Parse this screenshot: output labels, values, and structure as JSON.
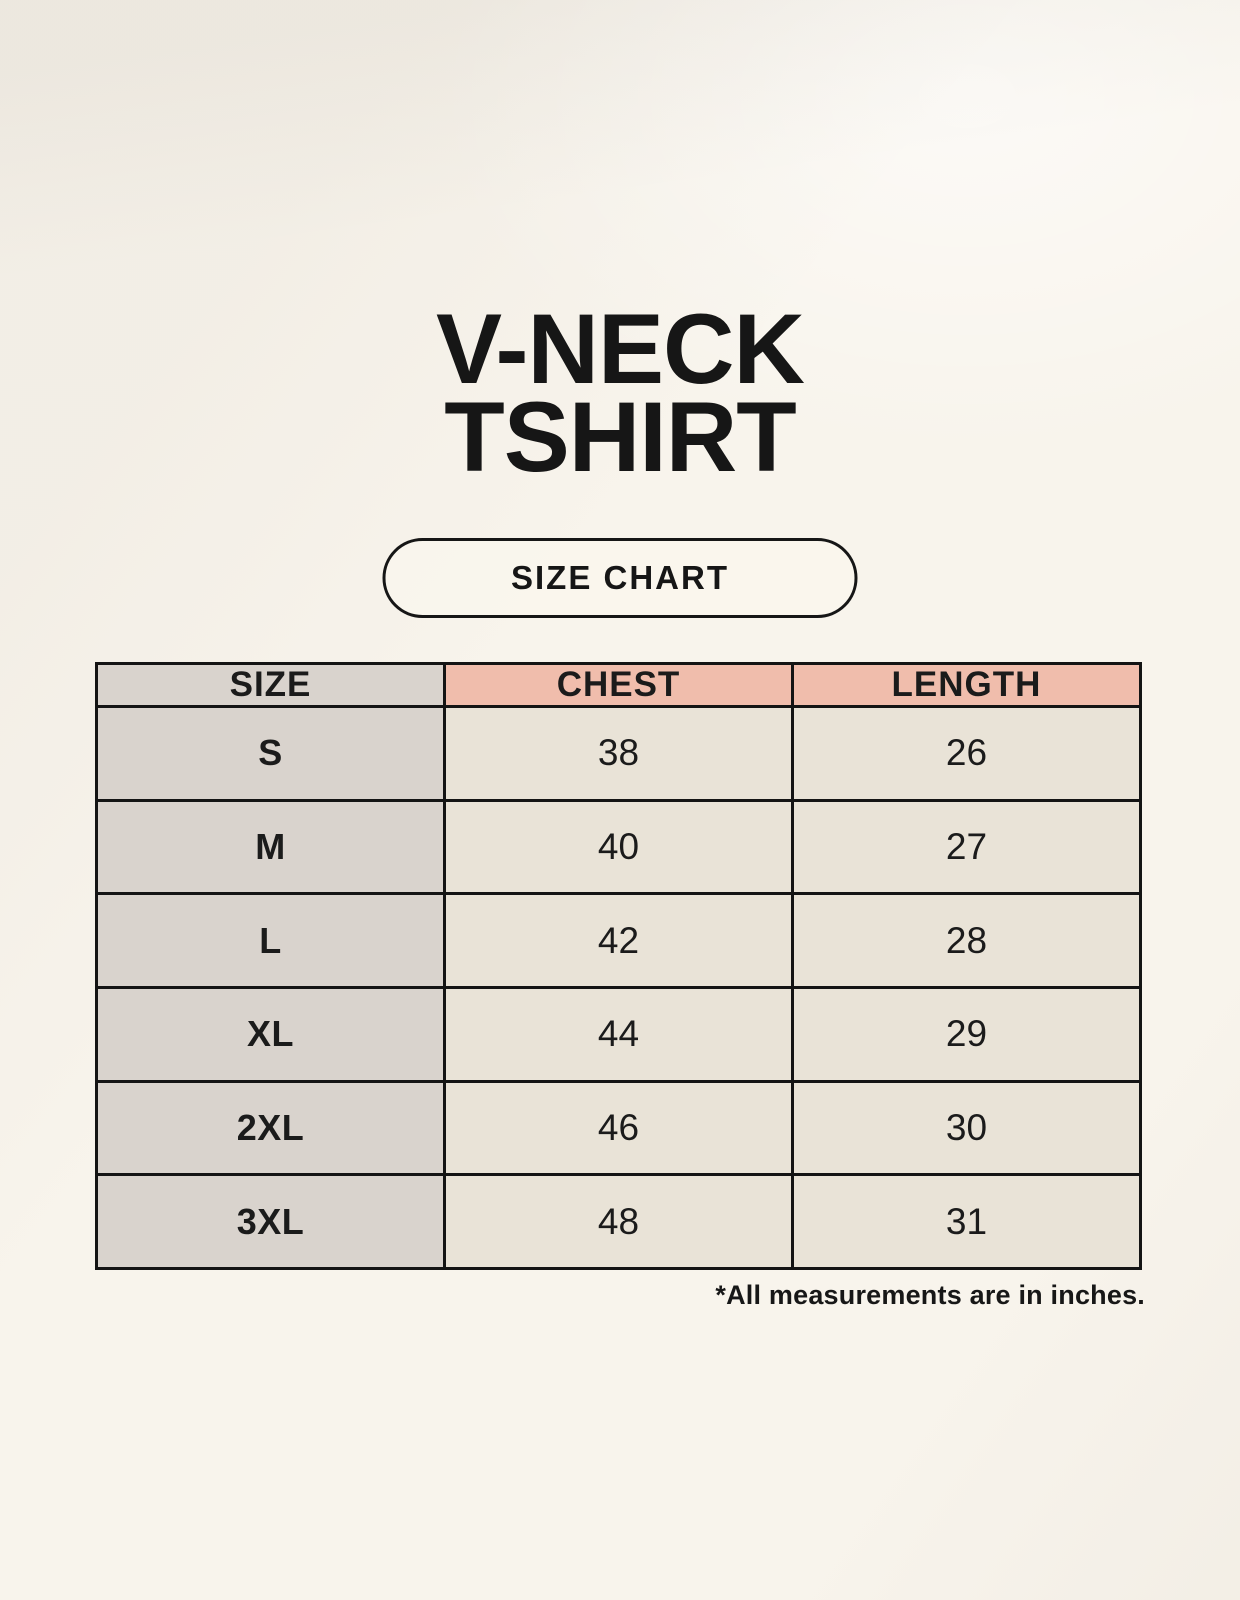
{
  "page": {
    "title_line1": "V-NECK",
    "title_line2": "TSHIRT",
    "badge_label": "SIZE CHART",
    "footnote": "*All measurements are in inches."
  },
  "colors": {
    "background": "#f8f4ec",
    "header_pink": "#f0bdac",
    "size_column_gray": "#d9d3cd",
    "data_cell_cream": "#e9e3d7",
    "border": "#141414",
    "text": "#181818"
  },
  "chart_data": {
    "type": "table",
    "title": "V-NECK TSHIRT",
    "subtitle": "SIZE CHART",
    "columns": [
      "SIZE",
      "CHEST",
      "LENGTH"
    ],
    "rows": [
      [
        "S",
        "38",
        "26"
      ],
      [
        "M",
        "40",
        "27"
      ],
      [
        "L",
        "42",
        "28"
      ],
      [
        "XL",
        "44",
        "29"
      ],
      [
        "2XL",
        "46",
        "30"
      ],
      [
        "3XL",
        "48",
        "31"
      ]
    ],
    "units": "inches",
    "note": "*All measurements are in inches.",
    "layout_hints": {
      "header_row_fill": [
        "gray",
        "pink",
        "pink"
      ],
      "first_column_fill": "gray",
      "data_cells_fill": "cream",
      "grid": true
    }
  }
}
